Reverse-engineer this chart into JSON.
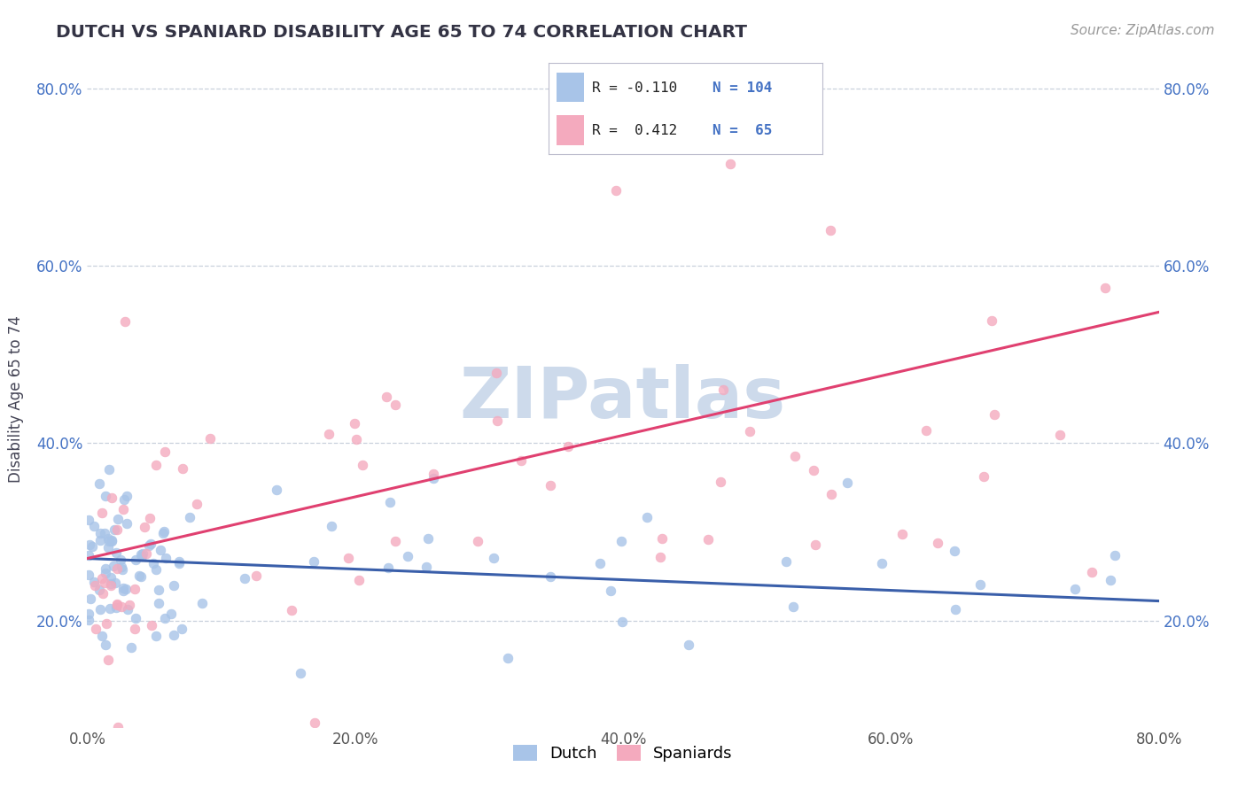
{
  "title": "DUTCH VS SPANIARD DISABILITY AGE 65 TO 74 CORRELATION CHART",
  "source_text": "Source: ZipAtlas.com",
  "ylabel": "Disability Age 65 to 74",
  "xlim": [
    0.0,
    0.8
  ],
  "ylim": [
    0.08,
    0.82
  ],
  "yticks": [
    0.2,
    0.4,
    0.6,
    0.8
  ],
  "ytick_labels": [
    "20.0%",
    "40.0%",
    "60.0%",
    "80.0%"
  ],
  "xticks": [
    0.0,
    0.2,
    0.4,
    0.6,
    0.8
  ],
  "xtick_labels": [
    "0.0%",
    "20.0%",
    "40.0%",
    "60.0%",
    "80.0%"
  ],
  "dutch_color": "#a8c4e8",
  "spaniard_color": "#f4aabe",
  "dutch_line_color": "#3a5faa",
  "spaniard_line_color": "#e04070",
  "title_color": "#333344",
  "watermark_color": "#cddaeb",
  "watermark_text": "ZIPatlas",
  "grid_color": "#c8d0dc",
  "tick_color": "#4472c4",
  "dutch_line_start_y": 0.27,
  "dutch_line_end_y": 0.222,
  "spaniard_line_start_y": 0.27,
  "spaniard_line_end_y": 0.548
}
